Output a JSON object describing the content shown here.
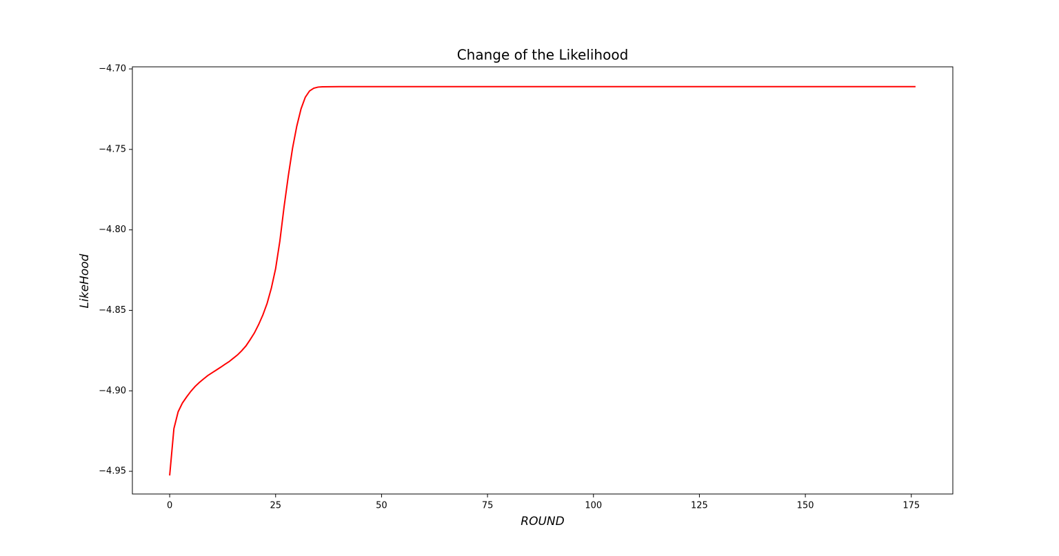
{
  "chart_data": {
    "type": "line",
    "title": "Change of the Likelihood",
    "x_label": "ROUND",
    "y_label": "LikeHood",
    "x": [
      0,
      1,
      2,
      3,
      4,
      5,
      6,
      7,
      8,
      9,
      10,
      11,
      12,
      13,
      14,
      15,
      16,
      17,
      18,
      19,
      20,
      21,
      22,
      23,
      24,
      25,
      26,
      27,
      28,
      29,
      30,
      31,
      32,
      33,
      34,
      35,
      36,
      40,
      50,
      100,
      150,
      176
    ],
    "series": [
      {
        "name": "likelihood",
        "color": "#ff0000",
        "values": [
          -4.9526,
          -4.9235,
          -4.913,
          -4.9076,
          -4.9038,
          -4.9003,
          -4.8973,
          -4.8948,
          -4.8926,
          -4.8905,
          -4.8888,
          -4.8871,
          -4.8854,
          -4.8836,
          -4.8819,
          -4.8798,
          -4.8777,
          -4.8751,
          -4.8721,
          -4.8682,
          -4.864,
          -4.8588,
          -4.8528,
          -4.8456,
          -4.8361,
          -4.8241,
          -4.807,
          -4.7856,
          -4.7664,
          -4.7492,
          -4.7355,
          -4.7248,
          -4.7176,
          -4.7137,
          -4.712,
          -4.7113,
          -4.7111,
          -4.711,
          -4.711,
          -4.711,
          -4.711,
          -4.711
        ]
      }
    ],
    "xlim": [
      -8.8,
      184.8
    ],
    "ylim": [
      -4.9641,
      -4.6987
    ],
    "xticks": [
      0,
      25,
      50,
      75,
      100,
      125,
      150,
      175
    ],
    "yticks": [
      {
        "value": -4.95,
        "label": "−4.95"
      },
      {
        "value": -4.9,
        "label": "−4.90"
      },
      {
        "value": -4.85,
        "label": "−4.85"
      },
      {
        "value": -4.8,
        "label": "−4.80"
      },
      {
        "value": -4.75,
        "label": "−4.75"
      },
      {
        "value": -4.7,
        "label": "−4.70"
      }
    ],
    "grid": false
  }
}
